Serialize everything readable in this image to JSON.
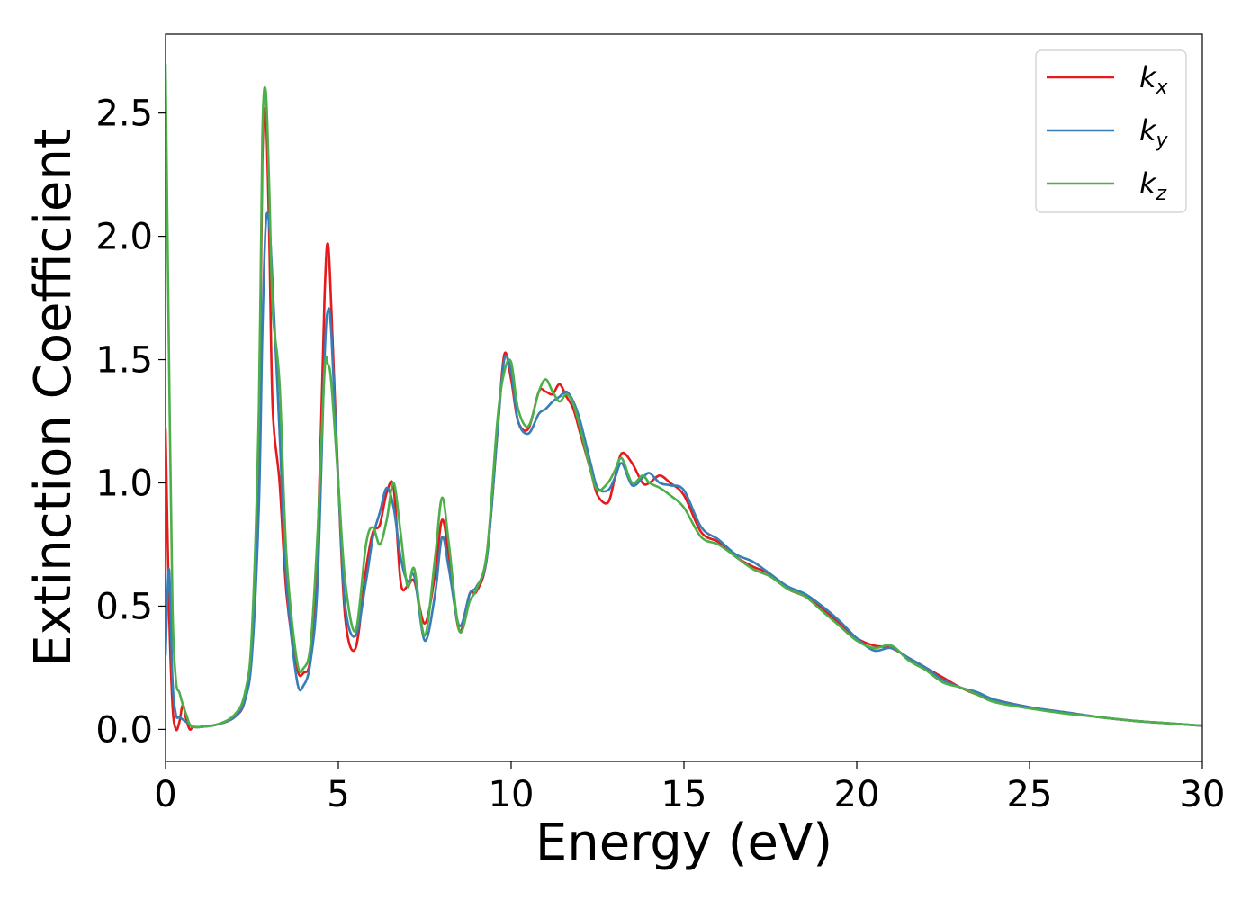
{
  "chart_data": {
    "type": "line",
    "title": "",
    "xlabel": "Energy (eV)",
    "ylabel": "Extinction Coefficient",
    "xlim": [
      0,
      30
    ],
    "ylim": [
      -0.13,
      2.82
    ],
    "xticks": [
      0,
      5,
      10,
      15,
      20,
      25,
      30
    ],
    "xtick_labels": [
      "0",
      "5",
      "10",
      "15",
      "20",
      "25",
      "30"
    ],
    "yticks": [
      0.0,
      0.5,
      1.0,
      1.5,
      2.0,
      2.5
    ],
    "ytick_labels": [
      "0.0",
      "0.5",
      "1.0",
      "1.5",
      "2.0",
      "2.5"
    ],
    "grid": false,
    "legend_position": "top-right",
    "series": [
      {
        "name": "k",
        "subscript": "x",
        "color": "#e41a1c",
        "x": [
          0.0,
          0.1,
          0.2,
          0.3,
          0.4,
          0.5,
          0.6,
          0.7,
          0.8,
          1.0,
          1.5,
          2.0,
          2.3,
          2.5,
          2.7,
          2.8,
          2.9,
          3.0,
          3.1,
          3.3,
          3.5,
          3.8,
          4.0,
          4.2,
          4.4,
          4.6,
          4.7,
          4.8,
          5.0,
          5.2,
          5.5,
          5.8,
          6.0,
          6.2,
          6.4,
          6.6,
          6.8,
          7.0,
          7.2,
          7.5,
          7.8,
          8.0,
          8.2,
          8.5,
          8.8,
          9.0,
          9.3,
          9.6,
          9.8,
          10.0,
          10.2,
          10.5,
          10.8,
          11.0,
          11.2,
          11.4,
          11.6,
          11.8,
          12.0,
          12.3,
          12.5,
          12.8,
          13.0,
          13.2,
          13.5,
          13.8,
          14.0,
          14.3,
          14.6,
          15.0,
          15.5,
          16.0,
          16.5,
          17.0,
          17.5,
          18.0,
          18.5,
          19.0,
          19.5,
          20.0,
          20.5,
          21.0,
          21.5,
          22.0,
          22.5,
          23.0,
          23.5,
          24.0,
          25.0,
          26.0,
          27.0,
          28.0,
          29.0,
          30.0
        ],
        "values": [
          1.22,
          0.5,
          0.1,
          0.0,
          0.03,
          0.1,
          0.04,
          0.0,
          0.01,
          0.01,
          0.02,
          0.05,
          0.12,
          0.35,
          1.2,
          2.3,
          2.5,
          2.0,
          1.3,
          1.0,
          0.55,
          0.25,
          0.23,
          0.3,
          0.75,
          1.75,
          1.97,
          1.7,
          1.0,
          0.45,
          0.33,
          0.65,
          0.8,
          0.83,
          0.96,
          0.98,
          0.6,
          0.58,
          0.6,
          0.43,
          0.63,
          0.85,
          0.7,
          0.4,
          0.55,
          0.56,
          0.7,
          1.2,
          1.52,
          1.42,
          1.25,
          1.22,
          1.37,
          1.37,
          1.36,
          1.4,
          1.35,
          1.3,
          1.2,
          1.05,
          0.95,
          0.92,
          1.02,
          1.12,
          1.08,
          1.0,
          1.0,
          1.03,
          1.0,
          0.95,
          0.8,
          0.76,
          0.7,
          0.66,
          0.63,
          0.57,
          0.54,
          0.49,
          0.43,
          0.37,
          0.34,
          0.33,
          0.29,
          0.25,
          0.21,
          0.17,
          0.14,
          0.12,
          0.09,
          0.07,
          0.05,
          0.035,
          0.025,
          0.015
        ]
      },
      {
        "name": "k",
        "subscript": "y",
        "color": "#377eb8",
        "x": [
          0.0,
          0.1,
          0.2,
          0.3,
          0.4,
          0.5,
          0.6,
          0.7,
          0.8,
          1.0,
          1.5,
          2.0,
          2.3,
          2.5,
          2.7,
          2.8,
          2.9,
          3.0,
          3.1,
          3.3,
          3.5,
          3.8,
          4.0,
          4.2,
          4.4,
          4.6,
          4.7,
          4.8,
          5.0,
          5.2,
          5.5,
          5.8,
          6.0,
          6.2,
          6.4,
          6.6,
          6.8,
          7.0,
          7.2,
          7.5,
          7.8,
          8.0,
          8.2,
          8.5,
          8.8,
          9.0,
          9.3,
          9.6,
          9.8,
          10.0,
          10.2,
          10.5,
          10.8,
          11.0,
          11.2,
          11.4,
          11.6,
          11.8,
          12.0,
          12.3,
          12.5,
          12.8,
          13.0,
          13.2,
          13.5,
          13.8,
          14.0,
          14.3,
          14.6,
          15.0,
          15.5,
          16.0,
          16.5,
          17.0,
          17.5,
          18.0,
          18.5,
          19.0,
          19.5,
          20.0,
          20.5,
          21.0,
          21.5,
          22.0,
          22.5,
          23.0,
          23.5,
          24.0,
          25.0,
          26.0,
          27.0,
          28.0,
          29.0,
          30.0
        ],
        "values": [
          0.3,
          0.65,
          0.2,
          0.06,
          0.05,
          0.04,
          0.03,
          0.02,
          0.01,
          0.01,
          0.02,
          0.05,
          0.12,
          0.3,
          0.9,
          1.6,
          2.05,
          2.05,
          1.8,
          1.2,
          0.6,
          0.2,
          0.18,
          0.28,
          0.6,
          1.5,
          1.7,
          1.6,
          1.0,
          0.5,
          0.38,
          0.6,
          0.78,
          0.88,
          0.98,
          0.9,
          0.7,
          0.6,
          0.62,
          0.36,
          0.55,
          0.78,
          0.65,
          0.42,
          0.55,
          0.58,
          0.7,
          1.2,
          1.5,
          1.45,
          1.25,
          1.2,
          1.28,
          1.3,
          1.33,
          1.35,
          1.37,
          1.33,
          1.25,
          1.08,
          0.98,
          0.97,
          1.02,
          1.08,
          0.99,
          1.02,
          1.04,
          1.0,
          0.99,
          0.97,
          0.82,
          0.77,
          0.71,
          0.68,
          0.63,
          0.58,
          0.55,
          0.5,
          0.44,
          0.37,
          0.32,
          0.33,
          0.29,
          0.25,
          0.2,
          0.17,
          0.15,
          0.12,
          0.09,
          0.07,
          0.05,
          0.035,
          0.025,
          0.015
        ]
      },
      {
        "name": "k",
        "subscript": "z",
        "color": "#4daf4a",
        "x": [
          0.0,
          0.1,
          0.2,
          0.3,
          0.4,
          0.5,
          0.6,
          0.7,
          0.8,
          1.0,
          1.5,
          2.0,
          2.3,
          2.5,
          2.7,
          2.8,
          2.9,
          3.0,
          3.1,
          3.3,
          3.5,
          3.8,
          4.0,
          4.2,
          4.4,
          4.6,
          4.7,
          4.8,
          5.0,
          5.2,
          5.5,
          5.8,
          6.0,
          6.2,
          6.4,
          6.6,
          6.8,
          7.0,
          7.2,
          7.5,
          7.8,
          8.0,
          8.2,
          8.5,
          8.8,
          9.0,
          9.3,
          9.6,
          9.8,
          10.0,
          10.2,
          10.5,
          10.8,
          11.0,
          11.2,
          11.4,
          11.6,
          11.8,
          12.0,
          12.3,
          12.5,
          12.8,
          13.0,
          13.2,
          13.5,
          13.8,
          14.0,
          14.3,
          14.6,
          15.0,
          15.5,
          16.0,
          16.5,
          17.0,
          17.5,
          18.0,
          18.5,
          19.0,
          19.5,
          20.0,
          20.5,
          21.0,
          21.5,
          22.0,
          22.5,
          23.0,
          23.5,
          24.0,
          25.0,
          26.0,
          27.0,
          28.0,
          29.0,
          30.0
        ],
        "values": [
          2.7,
          1.5,
          0.5,
          0.2,
          0.15,
          0.1,
          0.06,
          0.02,
          0.01,
          0.01,
          0.02,
          0.06,
          0.15,
          0.4,
          1.3,
          2.4,
          2.59,
          2.2,
          1.7,
          1.4,
          0.7,
          0.28,
          0.25,
          0.35,
          0.8,
          1.45,
          1.48,
          1.4,
          1.0,
          0.6,
          0.4,
          0.75,
          0.82,
          0.75,
          0.85,
          1.0,
          0.8,
          0.58,
          0.65,
          0.38,
          0.7,
          0.94,
          0.75,
          0.4,
          0.52,
          0.57,
          0.72,
          1.25,
          1.45,
          1.49,
          1.3,
          1.23,
          1.37,
          1.42,
          1.37,
          1.33,
          1.36,
          1.32,
          1.22,
          1.05,
          0.97,
          1.0,
          1.05,
          1.1,
          1.0,
          1.03,
          1.0,
          0.98,
          0.95,
          0.9,
          0.78,
          0.75,
          0.7,
          0.65,
          0.62,
          0.57,
          0.54,
          0.48,
          0.42,
          0.36,
          0.33,
          0.34,
          0.28,
          0.24,
          0.19,
          0.17,
          0.14,
          0.11,
          0.085,
          0.065,
          0.05,
          0.035,
          0.025,
          0.015
        ]
      }
    ]
  }
}
